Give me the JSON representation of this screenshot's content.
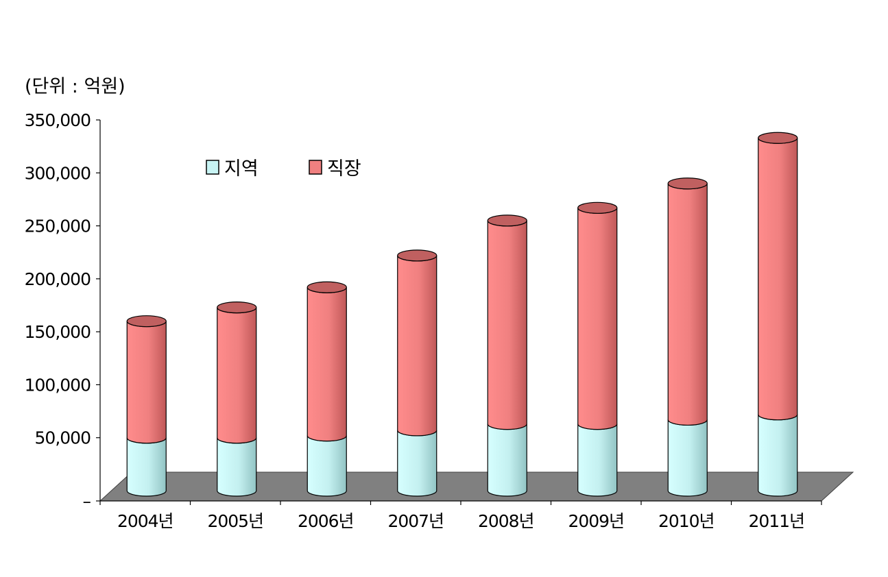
{
  "chart_data": {
    "type": "bar",
    "stacked": true,
    "style": "3d-cylinder",
    "unit_label": "(단위 : 억원)",
    "categories": [
      "2004년",
      "2005년",
      "2006년",
      "2007년",
      "2008년",
      "2009년",
      "2010년",
      "2011년"
    ],
    "series": [
      {
        "name": "지역",
        "color": "#c8f4f4",
        "values": [
          50000,
          50000,
          52000,
          57000,
          63000,
          63000,
          67000,
          72000
        ]
      },
      {
        "name": "직장",
        "color": "#f08080",
        "values": [
          110000,
          123000,
          140000,
          165000,
          192000,
          204000,
          223000,
          261000
        ]
      }
    ],
    "yticks": [
      "–",
      "50,000",
      "100,000",
      "150,000",
      "200,000",
      "250,000",
      "300,000",
      "350,000"
    ],
    "ylim": [
      0,
      350000
    ],
    "legend_position": "top-left",
    "grid": false,
    "floor_color": "#808080"
  }
}
